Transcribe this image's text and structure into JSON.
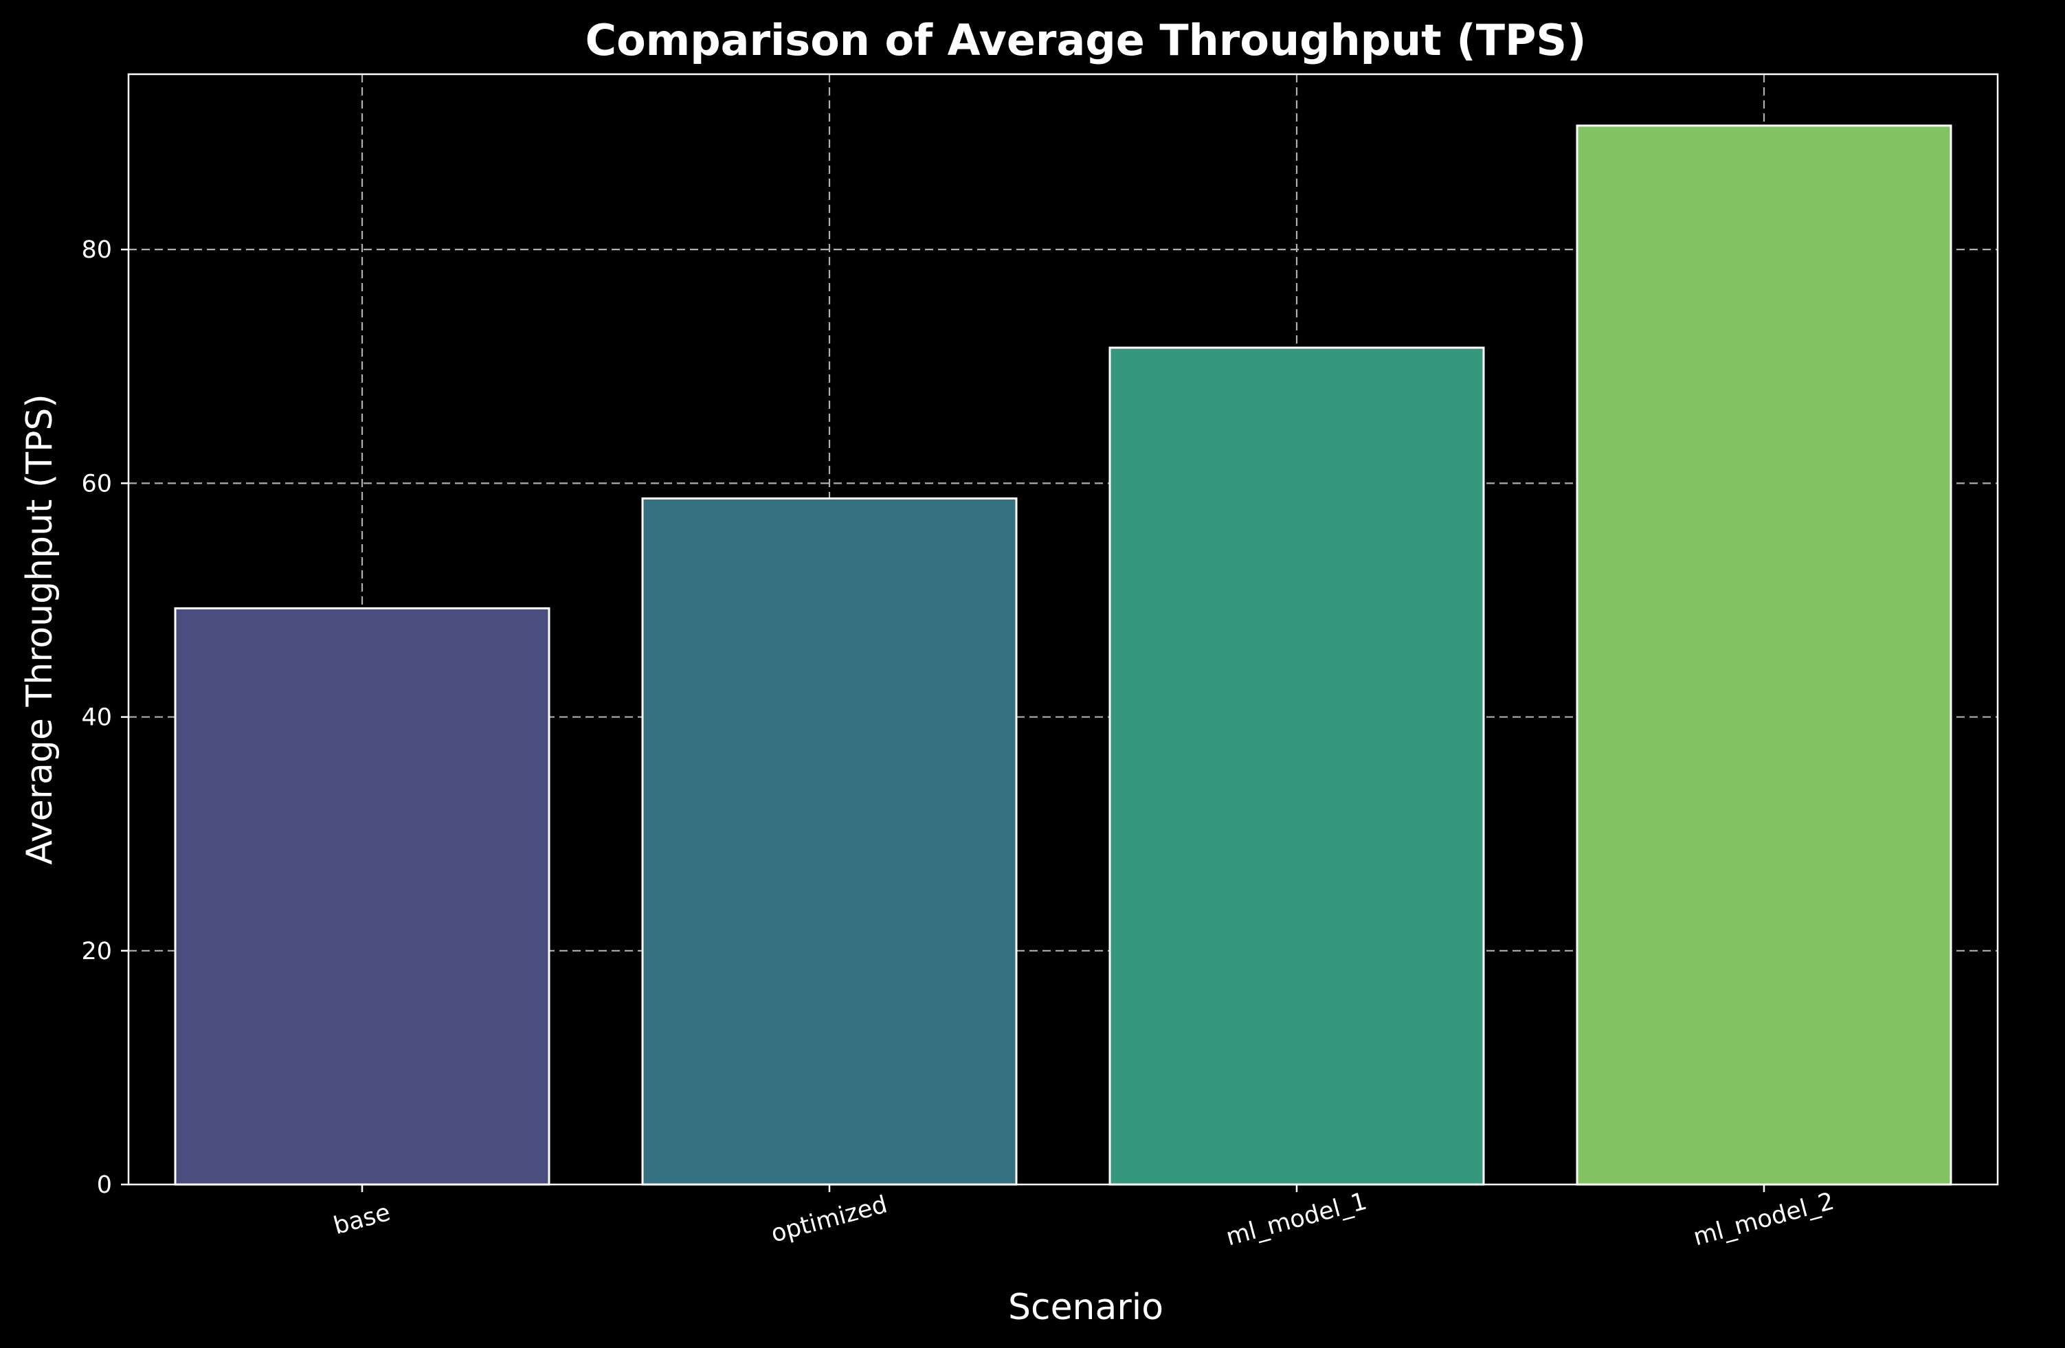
{
  "chart_data": {
    "type": "bar",
    "title": "Comparison of Average Throughput (TPS)",
    "xlabel": "Scenario",
    "ylabel": "Average Throughput (TPS)",
    "categories": [
      "base",
      "optimized",
      "ml_model_1",
      "ml_model_2"
    ],
    "values": [
      49.3,
      58.7,
      71.6,
      90.6
    ],
    "colors": [
      "#4a4e7e",
      "#367181",
      "#35977c",
      "#81c263"
    ],
    "ylim": [
      0,
      95
    ],
    "yticks": [
      0,
      20,
      40,
      60,
      80
    ],
    "grid": true,
    "background": "#000000"
  }
}
